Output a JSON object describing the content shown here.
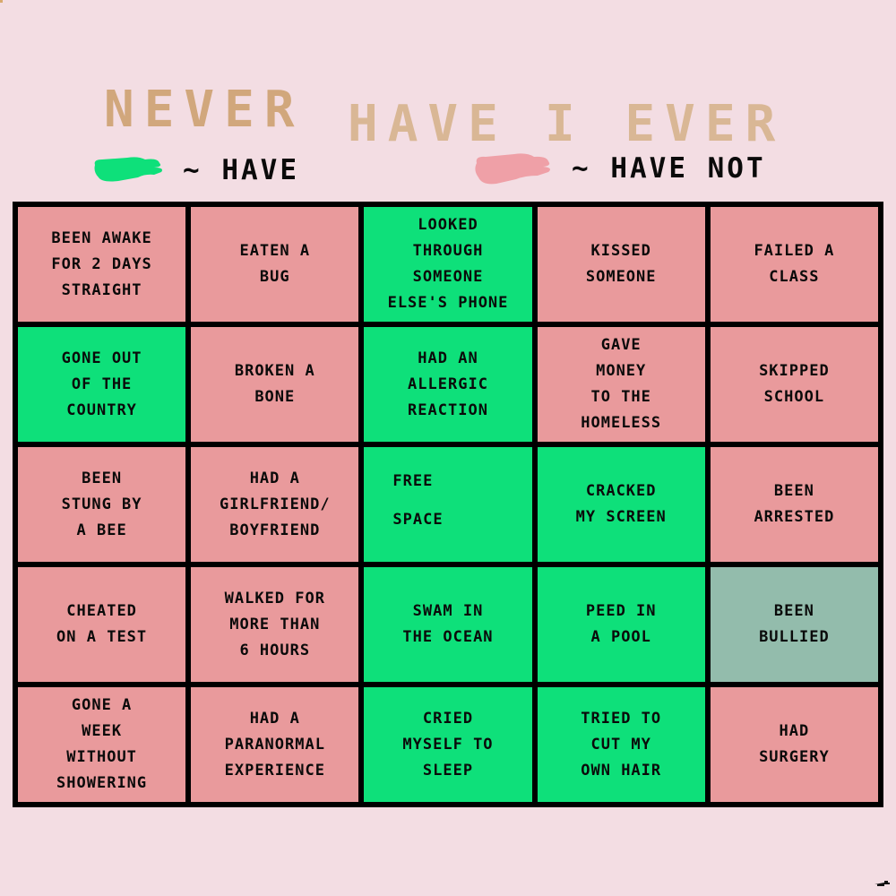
{
  "title": {
    "never": "NEVER",
    "have": "HAVE",
    "i_ever": "I EVER"
  },
  "legend": {
    "have_label": "~ HAVE",
    "have_not_label": "~ HAVE NOT"
  },
  "colors": {
    "background": "#f3dde3",
    "have_green": "#0ee07a",
    "have_not_pink": "#e99a9c",
    "muted_sage": "#93bcac",
    "title_tan_dark": "#d1a77c",
    "title_tan_light": "#d9b795",
    "legend_pink_blob": "#efa0a7",
    "grid_line": "#000000",
    "text": "#0a0a0a"
  },
  "grid": {
    "rows": [
      {
        "cells": [
          {
            "lines": [
              "BEEN AWAKE",
              "FOR 2 DAYS",
              "STRAIGHT"
            ],
            "state": "have_not"
          },
          {
            "lines": [
              "EATEN A",
              "BUG"
            ],
            "state": "have_not"
          },
          {
            "lines": [
              "LOOKED",
              "THROUGH",
              "SOMEONE",
              "ELSE'S PHONE"
            ],
            "state": "have"
          },
          {
            "lines": [
              "KISSED",
              "SOMEONE"
            ],
            "state": "have_not"
          },
          {
            "lines": [
              "FAILED A",
              "CLASS"
            ],
            "state": "have_not"
          }
        ]
      },
      {
        "cells": [
          {
            "lines": [
              "GONE OUT",
              "OF THE",
              "COUNTRY"
            ],
            "state": "have"
          },
          {
            "lines": [
              "BROKEN A",
              "BONE"
            ],
            "state": "have_not"
          },
          {
            "lines": [
              "HAD AN",
              "ALLERGIC",
              "REACTION"
            ],
            "state": "have"
          },
          {
            "lines": [
              "GAVE",
              "MONEY",
              "TO THE",
              "HOMELESS"
            ],
            "state": "have_not"
          },
          {
            "lines": [
              "SKIPPED",
              "SCHOOL"
            ],
            "state": "have_not"
          }
        ]
      },
      {
        "cells": [
          {
            "lines": [
              "BEEN",
              "STUNG BY",
              "A BEE"
            ],
            "state": "have_not"
          },
          {
            "lines": [
              "HAD A",
              "GIRLFRIEND/",
              "BOYFRIEND"
            ],
            "state": "have_not"
          },
          {
            "lines": [
              "FREE",
              "SPACE"
            ],
            "state": "have",
            "free_space": true
          },
          {
            "lines": [
              "CRACKED",
              "MY SCREEN"
            ],
            "state": "have"
          },
          {
            "lines": [
              "BEEN",
              "ARRESTED"
            ],
            "state": "have_not"
          }
        ]
      },
      {
        "cells": [
          {
            "lines": [
              "CHEATED",
              "ON A TEST"
            ],
            "state": "have_not"
          },
          {
            "lines": [
              "WALKED FOR",
              "MORE THAN",
              "6 HOURS"
            ],
            "state": "have_not"
          },
          {
            "lines": [
              "SWAM IN",
              "THE OCEAN"
            ],
            "state": "have"
          },
          {
            "lines": [
              "PEED IN",
              "A POOL"
            ],
            "state": "have"
          },
          {
            "lines": [
              "BEEN",
              "BULLIED"
            ],
            "state": "muted"
          }
        ]
      },
      {
        "cells": [
          {
            "lines": [
              "GONE A",
              "WEEK",
              "WITHOUT",
              "SHOWERING"
            ],
            "state": "have_not"
          },
          {
            "lines": [
              "HAD A",
              "PARANORMAL",
              "EXPERIENCE"
            ],
            "state": "have_not"
          },
          {
            "lines": [
              "CRIED",
              "MYSELF TO",
              "SLEEP"
            ],
            "state": "have"
          },
          {
            "lines": [
              "TRIED TO",
              "CUT MY",
              "OWN HAIR"
            ],
            "state": "have"
          },
          {
            "lines": [
              "HAD",
              "SURGERY"
            ],
            "state": "have_not"
          }
        ]
      }
    ]
  }
}
